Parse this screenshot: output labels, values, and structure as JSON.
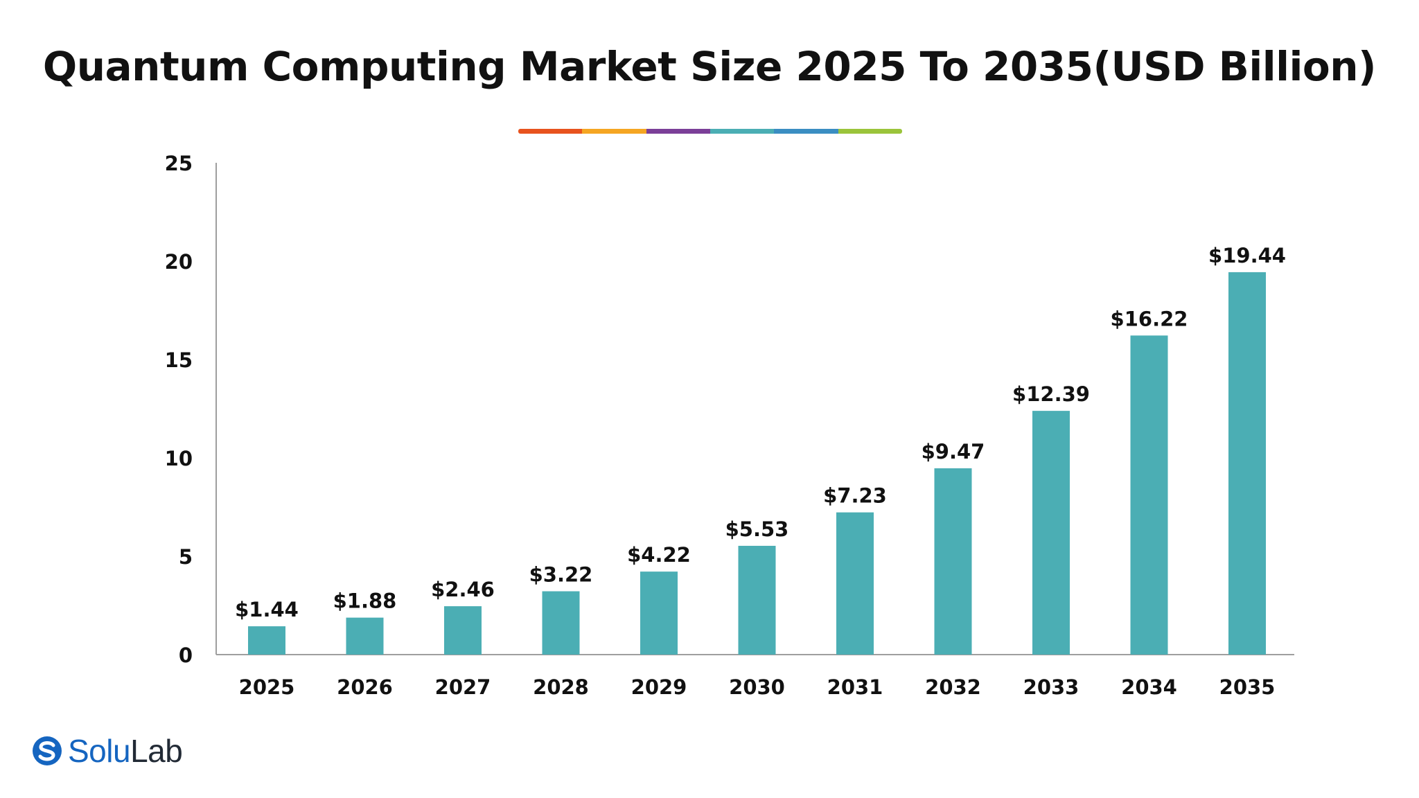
{
  "colors": {
    "bar": "#4baeb4",
    "text": "#111111",
    "axis": "#9e9e9e",
    "accent_segments": [
      "#e8531e",
      "#f5a623",
      "#7b3f98",
      "#4baeb4",
      "#3b8ec2",
      "#9bc43b"
    ],
    "logo_blue": "#1565c0",
    "logo_dark": "#222a35"
  },
  "chart_data": {
    "type": "bar",
    "title": "Quantum Computing Market Size 2025 To 2035(USD Billion)",
    "xlabel": "",
    "ylabel": "",
    "categories": [
      "2025",
      "2026",
      "2027",
      "2028",
      "2029",
      "2030",
      "2031",
      "2032",
      "2033",
      "2034",
      "2035"
    ],
    "values": [
      1.44,
      1.88,
      2.46,
      3.22,
      4.22,
      5.53,
      7.23,
      9.47,
      12.39,
      16.22,
      19.44
    ],
    "data_labels": [
      "$1.44",
      "$1.88",
      "$2.46",
      "$3.22",
      "$4.22",
      "$5.53",
      "$7.23",
      "$9.47",
      "$12.39",
      "$16.22",
      "$19.44"
    ],
    "ylim": [
      0,
      25
    ],
    "yticks": [
      "0",
      "5",
      "10",
      "15",
      "20",
      "25"
    ],
    "grid": false,
    "legend": "none"
  },
  "logo": {
    "icon": "solulab-logo-icon",
    "part1": "Solu",
    "part2": "Lab"
  }
}
